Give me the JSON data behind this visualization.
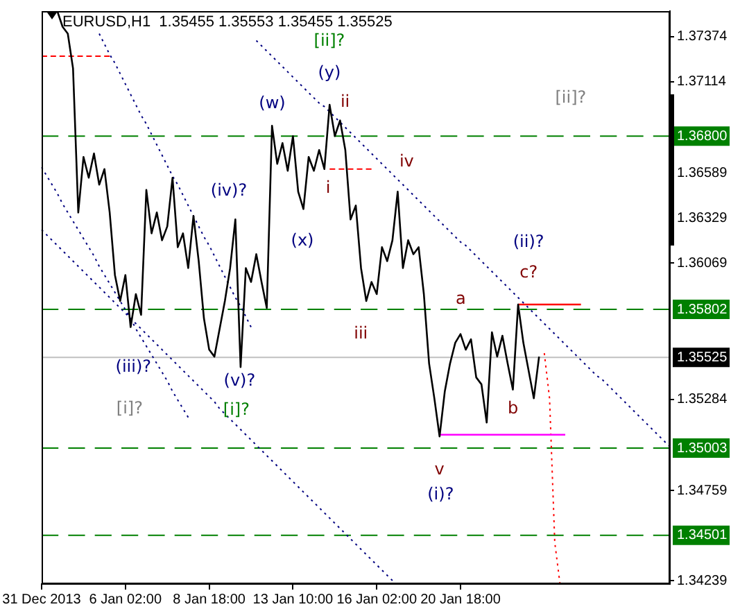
{
  "chart_data": {
    "type": "line",
    "title": "EURUSD,H1  1.35455 1.35553 1.35455 1.35525",
    "categories": [
      "31 Dec 2013",
      null,
      null,
      null,
      null,
      null,
      null,
      null,
      null,
      null,
      null,
      null,
      null,
      null,
      null,
      null,
      "6 Jan 02:00",
      null,
      null,
      null,
      null,
      null,
      null,
      null,
      null,
      null,
      null,
      null,
      null,
      null,
      null,
      null,
      "8 Jan 18:00",
      null,
      null,
      null,
      null,
      null,
      null,
      null,
      null,
      null,
      null,
      null,
      null,
      null,
      null,
      null,
      "13 Jan 10:00",
      null,
      null,
      null,
      null,
      null,
      null,
      null,
      null,
      null,
      null,
      null,
      null,
      null,
      null,
      null,
      "16 Jan 02:00",
      null,
      null,
      null,
      null,
      null,
      null,
      null,
      null,
      null,
      null,
      null,
      null,
      null,
      null,
      null,
      "20 Jan 18:00",
      null,
      null,
      null,
      null,
      null,
      null,
      null,
      null,
      null,
      null,
      null,
      null,
      null,
      null,
      null,
      null,
      null,
      null,
      null,
      null,
      null,
      null,
      null,
      null,
      null,
      null,
      null,
      null,
      null,
      null,
      null,
      null,
      null,
      null,
      null,
      null,
      null,
      null,
      null,
      null
    ],
    "ylim": [
      1.3422,
      1.3752
    ],
    "yticks": [
      1.37374,
      1.37114,
      1.36589,
      1.36329,
      1.36069,
      1.35284,
      1.34759,
      1.34239
    ],
    "series": [
      {
        "color": "#000000",
        "line_style": "solid",
        "values": [
          null,
          null,
          null,
          1.3752,
          1.3743,
          1.3739,
          1.3719,
          1.3636,
          1.3668,
          1.3656,
          1.367,
          1.3652,
          1.3661,
          1.3636,
          1.36,
          1.3585,
          1.36,
          1.357,
          1.3589,
          1.3577,
          1.3649,
          1.3624,
          1.3636,
          1.362,
          1.3628,
          1.3656,
          1.3616,
          1.3624,
          1.3604,
          1.3634,
          1.3608,
          1.3575,
          1.3557,
          1.3553,
          1.3569,
          1.3585,
          1.3604,
          1.3632,
          1.3547,
          1.3604,
          1.3596,
          1.3612,
          1.3596,
          1.3581,
          1.3686,
          1.3664,
          1.3676,
          1.366,
          1.368,
          1.3648,
          1.3638,
          1.3668,
          1.366,
          1.3672,
          1.3661,
          1.3698,
          1.368,
          1.3689,
          1.3672,
          1.3632,
          1.364,
          1.3604,
          1.3585,
          1.3596,
          1.3589,
          1.3616,
          1.3608,
          1.362,
          1.3648,
          1.3604,
          1.362,
          1.3612,
          1.3616,
          1.3589,
          1.3549,
          1.3529,
          1.3507,
          1.3533,
          1.3549,
          1.3561,
          1.3566,
          1.3557,
          1.3563,
          1.3541,
          1.3537,
          1.3515,
          1.3567,
          1.3553,
          1.3565,
          1.3549,
          1.3534,
          1.3583,
          1.3561,
          1.3545,
          1.3529,
          1.3553,
          null,
          null,
          null,
          null,
          null,
          null,
          null,
          null,
          null,
          null,
          null,
          null,
          null,
          null,
          null,
          null,
          null,
          null,
          null,
          null,
          null,
          null,
          null,
          null,
          null
        ]
      },
      {
        "color": "#000080",
        "line_style": "dotted",
        "values": [
          null,
          null,
          null,
          null,
          null,
          null,
          null,
          null,
          null,
          null,
          null,
          1.3739,
          1.3733,
          1.3727,
          1.3722,
          1.3716,
          1.371,
          1.3704,
          1.3698,
          1.3692,
          1.3687,
          1.3681,
          1.3675,
          1.3669,
          1.3663,
          1.3657,
          1.3652,
          1.3646,
          1.364,
          1.3634,
          1.3628,
          1.3622,
          1.3617,
          1.3611,
          1.3605,
          1.3599,
          1.3593,
          1.3587,
          1.3582,
          1.3576,
          1.357,
          null,
          null,
          null,
          null,
          null,
          null,
          null,
          null,
          null,
          null,
          null,
          null,
          null,
          null,
          null,
          null,
          null,
          null,
          null,
          null,
          null,
          null,
          null,
          null,
          null,
          null,
          null,
          null,
          null,
          null,
          null,
          null,
          null,
          null,
          null,
          null,
          null,
          null,
          null,
          null,
          null,
          null,
          null,
          null,
          null,
          null,
          null,
          null,
          null,
          null,
          null,
          null,
          null,
          null,
          null,
          null,
          null,
          null,
          null,
          null,
          null,
          null,
          null,
          null,
          null,
          null,
          null,
          null,
          null,
          null,
          null,
          null,
          null,
          null,
          null,
          null,
          null,
          null,
          null,
          null
        ]
      },
      {
        "color": "#000080",
        "line_style": "dotted",
        "values": [
          1.3662,
          1.3657,
          1.3652,
          1.3647,
          1.3641,
          1.3636,
          1.3631,
          1.3626,
          1.3621,
          1.3616,
          1.3611,
          1.3605,
          1.36,
          1.3595,
          1.359,
          1.3585,
          1.358,
          1.3575,
          1.3569,
          1.3564,
          1.3559,
          1.3554,
          1.3549,
          1.3544,
          1.3539,
          1.3533,
          1.3528,
          1.3523,
          1.3518,
          null,
          null,
          null,
          null,
          null,
          null,
          null,
          null,
          null,
          null,
          null,
          null,
          null,
          null,
          null,
          null,
          null,
          null,
          null,
          null,
          null,
          null,
          null,
          null,
          null,
          null,
          null,
          null,
          null,
          null,
          null,
          null,
          null,
          null,
          null,
          null,
          null,
          null,
          null,
          null,
          null,
          null,
          null,
          null,
          null,
          null,
          null,
          null,
          null,
          null,
          null,
          null,
          null,
          null,
          null,
          null,
          null,
          null,
          null,
          null,
          null,
          null,
          null,
          null,
          null,
          null,
          null,
          null,
          null,
          null,
          null,
          null,
          null,
          null,
          null,
          null,
          null,
          null,
          null,
          null,
          null,
          null,
          null,
          null,
          null,
          null,
          null,
          null,
          null,
          null,
          null,
          null
        ]
      },
      {
        "color": "#000080",
        "line_style": "dotted",
        "values": [
          1.3626,
          1.3623,
          1.362,
          1.3617,
          1.3614,
          1.3611,
          1.3608,
          1.3605,
          1.3602,
          1.3599,
          1.3596,
          1.3593,
          1.359,
          1.3587,
          1.3584,
          1.3581,
          1.3578,
          1.3575,
          1.3572,
          1.3569,
          1.3566,
          1.3563,
          1.356,
          1.3557,
          1.3554,
          1.3551,
          1.3548,
          1.3545,
          1.3542,
          1.3539,
          1.3536,
          1.3533,
          1.353,
          1.3527,
          1.3523,
          1.352,
          1.3517,
          1.3514,
          1.3511,
          1.3508,
          1.3505,
          1.3502,
          1.3499,
          1.3496,
          1.3493,
          1.349,
          1.3487,
          1.3484,
          1.3481,
          1.3478,
          1.3475,
          1.3472,
          1.3469,
          1.3466,
          1.3463,
          1.346,
          1.3457,
          1.3454,
          1.3451,
          1.3448,
          1.3445,
          1.3442,
          1.3439,
          1.3436,
          1.3433,
          1.343,
          1.3427,
          1.3424,
          null,
          null,
          null,
          null,
          null,
          null,
          null,
          null,
          null,
          null,
          null,
          null,
          null,
          null,
          null,
          null,
          null,
          null,
          null,
          null,
          null,
          null,
          null,
          null,
          null,
          null,
          null,
          null,
          null,
          null,
          null,
          null,
          null,
          null,
          null,
          null,
          null,
          null,
          null,
          null,
          null,
          null,
          null,
          null,
          null,
          null,
          null,
          null,
          null,
          null,
          null,
          null,
          null
        ]
      },
      {
        "color": "#000080",
        "line_style": "dotted",
        "values": [
          null,
          null,
          null,
          null,
          null,
          null,
          null,
          null,
          null,
          null,
          null,
          null,
          null,
          null,
          null,
          null,
          null,
          null,
          null,
          null,
          null,
          null,
          null,
          null,
          null,
          null,
          null,
          null,
          null,
          null,
          null,
          null,
          null,
          null,
          null,
          null,
          null,
          null,
          null,
          null,
          null,
          1.3735,
          1.3732,
          1.3729,
          1.3726,
          1.3723,
          1.372,
          1.3717,
          1.3714,
          1.3711,
          1.3708,
          1.3705,
          1.3702,
          1.3699,
          1.3697,
          1.3694,
          1.3691,
          1.3688,
          1.3685,
          1.3682,
          1.3679,
          1.3676,
          1.3673,
          1.367,
          1.3667,
          1.3664,
          1.3661,
          1.3658,
          1.3655,
          1.3652,
          1.3649,
          1.3646,
          1.3643,
          1.364,
          1.3637,
          1.3634,
          1.3631,
          1.3628,
          1.3625,
          1.3622,
          1.3619,
          1.3617,
          1.3614,
          1.3611,
          1.3608,
          1.3605,
          1.3602,
          1.3599,
          1.3596,
          1.3593,
          1.359,
          1.3587,
          1.3584,
          1.3581,
          1.3578,
          1.3575,
          1.3572,
          1.3569,
          1.3566,
          1.3563,
          1.356,
          1.3557,
          1.3554,
          1.3551,
          1.3548,
          1.3545,
          1.3542,
          1.354,
          1.3537,
          1.3534,
          1.3531,
          1.3528,
          1.3525,
          1.3522,
          1.3519,
          1.3516,
          1.3513,
          1.351,
          1.3507,
          1.3504,
          1.3501
        ]
      },
      {
        "color": "#ff0000",
        "line_style": "dashed",
        "values": [
          1.3726,
          1.3726,
          1.3726,
          1.3726,
          1.3726,
          1.3726,
          1.3726,
          1.3726,
          1.3726,
          1.3726,
          1.3726,
          1.3726,
          1.3726,
          1.3726,
          null,
          null,
          null,
          null,
          null,
          null,
          null,
          null,
          null,
          null,
          null,
          null,
          null,
          null,
          null,
          null,
          null,
          null,
          null,
          null,
          null,
          null,
          null,
          null,
          null,
          null,
          null,
          null,
          null,
          null,
          null,
          null,
          null,
          null,
          null,
          null,
          null,
          null,
          null,
          null,
          null,
          null,
          null,
          null,
          null,
          null,
          null,
          null,
          null,
          null,
          null,
          null,
          null,
          null,
          null,
          null,
          null,
          null,
          null,
          null,
          null,
          null,
          null,
          null,
          null,
          null,
          null,
          null,
          null,
          null,
          null,
          null,
          null,
          null,
          null,
          null,
          null,
          null,
          null,
          null,
          null,
          null,
          null,
          null,
          null,
          null,
          null,
          null,
          null,
          null,
          null,
          null,
          null,
          null,
          null,
          null,
          null,
          null,
          null,
          null,
          null,
          null,
          null,
          null,
          null,
          null,
          null
        ]
      },
      {
        "color": "#ff0000",
        "line_style": "dashed",
        "values": [
          null,
          null,
          null,
          null,
          null,
          null,
          null,
          null,
          null,
          null,
          null,
          null,
          null,
          null,
          null,
          null,
          null,
          null,
          null,
          null,
          null,
          null,
          null,
          null,
          null,
          null,
          null,
          null,
          null,
          null,
          null,
          null,
          null,
          null,
          null,
          null,
          null,
          null,
          null,
          null,
          null,
          null,
          null,
          null,
          null,
          null,
          null,
          null,
          null,
          null,
          null,
          null,
          null,
          null,
          null,
          1.3661,
          1.3661,
          1.3661,
          1.3661,
          1.3661,
          1.3661,
          1.3661,
          1.3661,
          1.3661,
          null,
          null,
          null,
          null,
          null,
          null,
          null,
          null,
          null,
          null,
          null,
          null,
          null,
          null,
          null,
          null,
          null,
          null,
          null,
          null,
          null,
          null,
          null,
          null,
          null,
          null,
          null,
          null,
          null,
          null,
          null,
          null,
          null,
          null,
          null,
          null,
          null,
          null,
          null,
          null,
          null,
          null,
          null,
          null,
          null,
          null,
          null,
          null,
          null,
          null,
          null,
          null,
          null,
          null,
          null,
          null,
          null
        ]
      },
      {
        "color": "#ff0000",
        "line_style": "solid",
        "values": [
          null,
          null,
          null,
          null,
          null,
          null,
          null,
          null,
          null,
          null,
          null,
          null,
          null,
          null,
          null,
          null,
          null,
          null,
          null,
          null,
          null,
          null,
          null,
          null,
          null,
          null,
          null,
          null,
          null,
          null,
          null,
          null,
          null,
          null,
          null,
          null,
          null,
          null,
          null,
          null,
          null,
          null,
          null,
          null,
          null,
          null,
          null,
          null,
          null,
          null,
          null,
          null,
          null,
          null,
          null,
          null,
          null,
          null,
          null,
          null,
          null,
          null,
          null,
          null,
          null,
          null,
          null,
          null,
          null,
          null,
          null,
          null,
          null,
          null,
          null,
          null,
          null,
          null,
          null,
          null,
          null,
          null,
          null,
          null,
          null,
          null,
          null,
          null,
          null,
          null,
          null,
          1.3583,
          1.3583,
          1.3583,
          1.3583,
          1.3583,
          1.3583,
          1.3583,
          1.3583,
          1.3583,
          1.3583,
          1.3583,
          1.3583,
          1.3583,
          null,
          null,
          null,
          null,
          null,
          null,
          null,
          null,
          null,
          null,
          null,
          null,
          null,
          null,
          null,
          null,
          null
        ]
      },
      {
        "color": "#ff00ff",
        "line_style": "solid",
        "values": [
          null,
          null,
          null,
          null,
          null,
          null,
          null,
          null,
          null,
          null,
          null,
          null,
          null,
          null,
          null,
          null,
          null,
          null,
          null,
          null,
          null,
          null,
          null,
          null,
          null,
          null,
          null,
          null,
          null,
          null,
          null,
          null,
          null,
          null,
          null,
          null,
          null,
          null,
          null,
          null,
          null,
          null,
          null,
          null,
          null,
          null,
          null,
          null,
          null,
          null,
          null,
          null,
          null,
          null,
          null,
          null,
          null,
          null,
          null,
          null,
          null,
          null,
          null,
          null,
          null,
          null,
          null,
          null,
          null,
          null,
          null,
          null,
          null,
          null,
          null,
          null,
          1.3508,
          1.3508,
          1.3508,
          1.3508,
          1.3508,
          1.3508,
          1.3508,
          1.3508,
          1.3508,
          1.3508,
          1.3508,
          1.3508,
          1.3508,
          1.3508,
          1.3508,
          1.3508,
          1.3508,
          1.3508,
          1.3508,
          1.3508,
          1.3508,
          1.3508,
          1.3508,
          1.3508,
          1.3508,
          null,
          null,
          null,
          null,
          null,
          null,
          null,
          null,
          null,
          null,
          null,
          null,
          null,
          null,
          null,
          null,
          null,
          null,
          null,
          null
        ]
      },
      {
        "color": "#ff0000",
        "line_style": "dotted",
        "values": [
          null,
          null,
          null,
          null,
          null,
          null,
          null,
          null,
          null,
          null,
          null,
          null,
          null,
          null,
          null,
          null,
          null,
          null,
          null,
          null,
          null,
          null,
          null,
          null,
          null,
          null,
          null,
          null,
          null,
          null,
          null,
          null,
          null,
          null,
          null,
          null,
          null,
          null,
          null,
          null,
          null,
          null,
          null,
          null,
          null,
          null,
          null,
          null,
          null,
          null,
          null,
          null,
          null,
          null,
          null,
          null,
          null,
          null,
          null,
          null,
          null,
          null,
          null,
          null,
          null,
          null,
          null,
          null,
          null,
          null,
          null,
          null,
          null,
          null,
          null,
          null,
          null,
          null,
          null,
          null,
          null,
          null,
          null,
          null,
          null,
          null,
          null,
          null,
          null,
          null,
          null,
          null,
          null,
          null,
          null,
          null,
          1.3555,
          1.3529,
          1.3446,
          1.3422,
          null,
          null,
          null,
          null,
          null,
          null,
          null,
          null,
          null,
          null,
          null,
          null,
          null,
          null,
          null,
          null,
          null,
          null,
          null,
          null,
          null
        ]
      }
    ],
    "ref_lines": [
      {
        "axis": "y",
        "value": 1.368,
        "label": "1.36800",
        "color": "#008000",
        "line_style": "dashed"
      },
      {
        "axis": "y",
        "value": 1.35802,
        "label": "1.35802",
        "color": "#008000",
        "line_style": "dashed"
      },
      {
        "axis": "y",
        "value": 1.35003,
        "label": "1.35003",
        "color": "#008000",
        "line_style": "dashed"
      },
      {
        "axis": "y",
        "value": 1.34501,
        "label": "1.34501",
        "color": "#008000",
        "line_style": "dashed"
      },
      {
        "axis": "y",
        "value": 1.35525,
        "label": "1.35525",
        "color": "#c0c0c0",
        "line_style": "solid"
      }
    ],
    "annotations": [
      "[ii]?",
      "(y)",
      "(w)",
      "ii",
      "i",
      "iv",
      "(x)",
      "(iv)?",
      "iii",
      "a",
      "(ii)?",
      "c?",
      "b",
      "v",
      "(i)?",
      "(iii)?",
      "(v)?",
      "[i]?",
      "[i]?",
      "[ii]?"
    ]
  }
}
